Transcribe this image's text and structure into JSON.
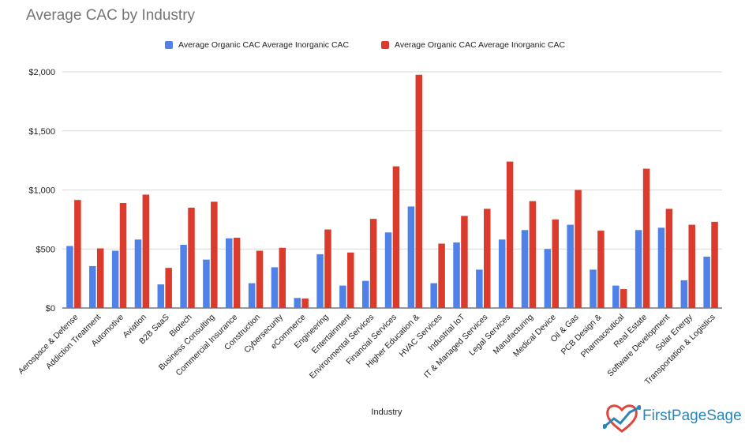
{
  "chart_data": {
    "type": "bar",
    "title": "Average CAC by Industry",
    "xlabel": "Industry",
    "ylabel": "",
    "ylim": [
      0,
      2000
    ],
    "yticks": [
      "$0",
      "$500",
      "$1,000",
      "$1,500",
      "$2,000"
    ],
    "legend_position": "top",
    "grid": true,
    "categories": [
      "Aerospace & Defense",
      "Addiction Treatment",
      "Automotive",
      "Aviation",
      "B2B SaaS",
      "Biotech",
      "Business Consulting",
      "Commercial Insurance",
      "Construction",
      "Cybersecurity",
      "eCommerce",
      "Engineering",
      "Entertainment",
      "Environmental Services",
      "Financial Services",
      "Higher Education &",
      "HVAC Services",
      "Industrial IoT",
      "IT & Managed Services",
      "Legal Services",
      "Manufacturing",
      "Medical Device",
      "Oil & Gas",
      "PCB Design &",
      "Pharmaceutical",
      "Real Estate",
      "Software Development",
      "Solar Energy",
      "Transportation & Logistics"
    ],
    "series": [
      {
        "name": "Average Organic CAC Average Inorganic CAC",
        "color": "#4f81e8",
        "values": [
          525,
          355,
          485,
          580,
          200,
          535,
          410,
          590,
          210,
          345,
          85,
          455,
          190,
          230,
          640,
          860,
          210,
          555,
          325,
          580,
          660,
          500,
          705,
          325,
          190,
          660,
          680,
          235,
          435
        ]
      },
      {
        "name": "Average Organic CAC Average Inorganic CAC",
        "color": "#da3b2d",
        "values": [
          915,
          505,
          890,
          960,
          340,
          850,
          900,
          595,
          485,
          510,
          80,
          665,
          470,
          755,
          1200,
          1975,
          545,
          780,
          840,
          1240,
          905,
          750,
          1000,
          655,
          160,
          1180,
          840,
          705,
          730
        ]
      }
    ]
  },
  "logo": {
    "text": "FirstPageSage"
  }
}
